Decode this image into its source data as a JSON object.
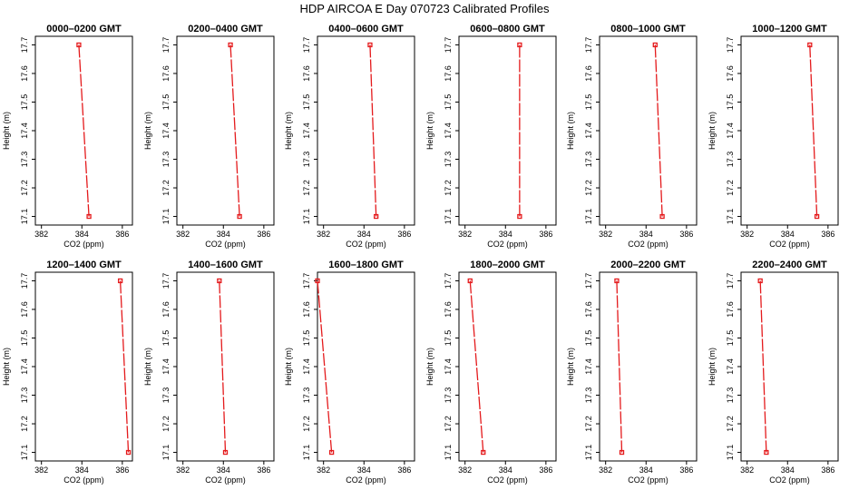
{
  "suptitle": "HDP AIRCOA E  Day 070723  Calibrated Profiles",
  "chart_data": [
    {
      "type": "line",
      "title": "0000–0200 GMT",
      "xlabel": "CO2 (ppm)",
      "ylabel": "Height (m)",
      "x_ticks": [
        "382",
        "384",
        "386"
      ],
      "y_ticks": [
        "17.1",
        "17.2",
        "17.3",
        "17.4",
        "17.5",
        "17.6",
        "17.7"
      ],
      "xlim": [
        381.7,
        386.5
      ],
      "ylim": [
        17.07,
        17.73
      ],
      "series": [
        {
          "x": [
            383.85,
            384.35
          ],
          "y": [
            17.7,
            17.1
          ]
        }
      ]
    },
    {
      "type": "line",
      "title": "0200–0400 GMT",
      "xlabel": "CO2 (ppm)",
      "ylabel": "Height (m)",
      "x_ticks": [
        "382",
        "384",
        "386"
      ],
      "y_ticks": [
        "17.1",
        "17.2",
        "17.3",
        "17.4",
        "17.5",
        "17.6",
        "17.7"
      ],
      "xlim": [
        381.7,
        386.5
      ],
      "ylim": [
        17.07,
        17.73
      ],
      "series": [
        {
          "x": [
            384.35,
            384.8
          ],
          "y": [
            17.7,
            17.1
          ]
        }
      ]
    },
    {
      "type": "line",
      "title": "0400–0600 GMT",
      "xlabel": "CO2 (ppm)",
      "ylabel": "Height (m)",
      "x_ticks": [
        "382",
        "384",
        "386"
      ],
      "y_ticks": [
        "17.1",
        "17.2",
        "17.3",
        "17.4",
        "17.5",
        "17.6",
        "17.7"
      ],
      "xlim": [
        381.7,
        386.5
      ],
      "ylim": [
        17.07,
        17.73
      ],
      "series": [
        {
          "x": [
            384.3,
            384.6
          ],
          "y": [
            17.7,
            17.1
          ]
        }
      ]
    },
    {
      "type": "line",
      "title": "0600–0800 GMT",
      "xlabel": "CO2 (ppm)",
      "ylabel": "Height (m)",
      "x_ticks": [
        "382",
        "384",
        "386"
      ],
      "y_ticks": [
        "17.1",
        "17.2",
        "17.3",
        "17.4",
        "17.5",
        "17.6",
        "17.7"
      ],
      "xlim": [
        381.7,
        386.5
      ],
      "ylim": [
        17.07,
        17.73
      ],
      "series": [
        {
          "x": [
            384.7,
            384.7
          ],
          "y": [
            17.7,
            17.1
          ]
        }
      ]
    },
    {
      "type": "line",
      "title": "0800–1000 GMT",
      "xlabel": "CO2 (ppm)",
      "ylabel": "Height (m)",
      "x_ticks": [
        "382",
        "384",
        "386"
      ],
      "y_ticks": [
        "17.1",
        "17.2",
        "17.3",
        "17.4",
        "17.5",
        "17.6",
        "17.7"
      ],
      "xlim": [
        381.7,
        386.5
      ],
      "ylim": [
        17.07,
        17.73
      ],
      "series": [
        {
          "x": [
            384.45,
            384.8
          ],
          "y": [
            17.7,
            17.1
          ]
        }
      ]
    },
    {
      "type": "line",
      "title": "1000–1200 GMT",
      "xlabel": "CO2 (ppm)",
      "ylabel": "Height (m)",
      "x_ticks": [
        "382",
        "384",
        "386"
      ],
      "y_ticks": [
        "17.1",
        "17.2",
        "17.3",
        "17.4",
        "17.5",
        "17.6",
        "17.7"
      ],
      "xlim": [
        381.7,
        386.5
      ],
      "ylim": [
        17.07,
        17.73
      ],
      "series": [
        {
          "x": [
            385.1,
            385.45
          ],
          "y": [
            17.7,
            17.1
          ]
        }
      ]
    },
    {
      "type": "line",
      "title": "1200–1400 GMT",
      "xlabel": "CO2 (ppm)",
      "ylabel": "Height (m)",
      "x_ticks": [
        "382",
        "384",
        "386"
      ],
      "y_ticks": [
        "17.1",
        "17.2",
        "17.3",
        "17.4",
        "17.5",
        "17.6",
        "17.7"
      ],
      "xlim": [
        381.7,
        386.5
      ],
      "ylim": [
        17.07,
        17.73
      ],
      "series": [
        {
          "x": [
            385.9,
            386.3
          ],
          "y": [
            17.7,
            17.1
          ]
        }
      ]
    },
    {
      "type": "line",
      "title": "1400–1600 GMT",
      "xlabel": "CO2 (ppm)",
      "ylabel": "Height (m)",
      "x_ticks": [
        "382",
        "384",
        "386"
      ],
      "y_ticks": [
        "17.1",
        "17.2",
        "17.3",
        "17.4",
        "17.5",
        "17.6",
        "17.7"
      ],
      "xlim": [
        381.7,
        386.5
      ],
      "ylim": [
        17.07,
        17.73
      ],
      "series": [
        {
          "x": [
            383.8,
            384.1
          ],
          "y": [
            17.7,
            17.1
          ]
        }
      ]
    },
    {
      "type": "line",
      "title": "1600–1800 GMT",
      "xlabel": "CO2 (ppm)",
      "ylabel": "Height (m)",
      "x_ticks": [
        "382",
        "384",
        "386"
      ],
      "y_ticks": [
        "17.1",
        "17.2",
        "17.3",
        "17.4",
        "17.5",
        "17.6",
        "17.7"
      ],
      "xlim": [
        381.7,
        386.5
      ],
      "ylim": [
        17.07,
        17.73
      ],
      "series": [
        {
          "x": [
            381.7,
            382.4
          ],
          "y": [
            17.7,
            17.1
          ]
        }
      ]
    },
    {
      "type": "line",
      "title": "1800–2000 GMT",
      "xlabel": "CO2 (ppm)",
      "ylabel": "Height (m)",
      "x_ticks": [
        "382",
        "384",
        "386"
      ],
      "y_ticks": [
        "17.1",
        "17.2",
        "17.3",
        "17.4",
        "17.5",
        "17.6",
        "17.7"
      ],
      "xlim": [
        381.7,
        386.5
      ],
      "ylim": [
        17.07,
        17.73
      ],
      "series": [
        {
          "x": [
            382.25,
            382.9
          ],
          "y": [
            17.7,
            17.1
          ]
        }
      ]
    },
    {
      "type": "line",
      "title": "2000–2200 GMT",
      "xlabel": "CO2 (ppm)",
      "ylabel": "Height (m)",
      "x_ticks": [
        "382",
        "384",
        "386"
      ],
      "y_ticks": [
        "17.1",
        "17.2",
        "17.3",
        "17.4",
        "17.5",
        "17.6",
        "17.7"
      ],
      "xlim": [
        381.7,
        386.5
      ],
      "ylim": [
        17.07,
        17.73
      ],
      "series": [
        {
          "x": [
            382.55,
            382.8
          ],
          "y": [
            17.7,
            17.1
          ]
        }
      ]
    },
    {
      "type": "line",
      "title": "2200–2400 GMT",
      "xlabel": "CO2 (ppm)",
      "ylabel": "Height (m)",
      "x_ticks": [
        "382",
        "384",
        "386"
      ],
      "y_ticks": [
        "17.1",
        "17.2",
        "17.3",
        "17.4",
        "17.5",
        "17.6",
        "17.7"
      ],
      "xlim": [
        381.7,
        386.5
      ],
      "ylim": [
        17.07,
        17.73
      ],
      "series": [
        {
          "x": [
            382.65,
            382.95
          ],
          "y": [
            17.7,
            17.1
          ]
        }
      ]
    }
  ],
  "colors": {
    "line": "#e41a1c",
    "marker": "#e41a1c",
    "axis": "#000000"
  }
}
